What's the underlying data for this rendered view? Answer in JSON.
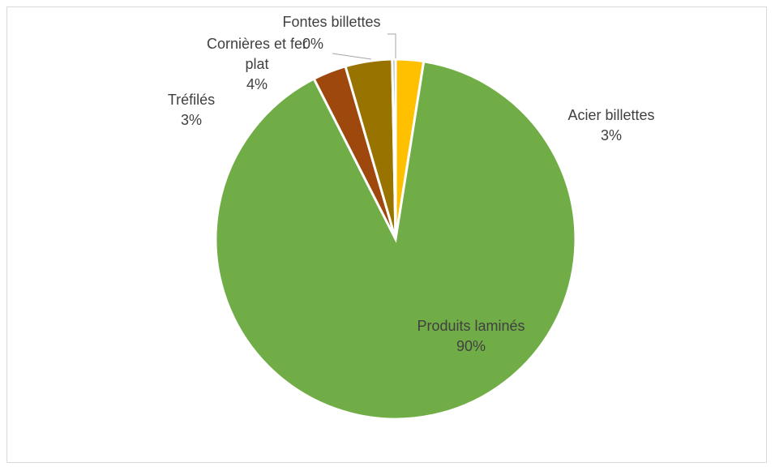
{
  "chart_data": {
    "type": "pie",
    "title": "",
    "legend": "none",
    "slices": [
      {
        "name": "Acier billettes",
        "label_lines": [
          "Acier billettes"
        ],
        "percent_label": "3%",
        "value": 2.5,
        "color": "#ffc000"
      },
      {
        "name": "Produits laminés",
        "label_lines": [
          "Produits laminés"
        ],
        "percent_label": "90%",
        "value": 90.0,
        "color": "#70ad47"
      },
      {
        "name": "Tréfilés",
        "label_lines": [
          "Tréfilés"
        ],
        "percent_label": "3%",
        "value": 3.0,
        "color": "#9e480e"
      },
      {
        "name": "Cornières et fer plat",
        "label_lines": [
          "Cornières et fer",
          "plat"
        ],
        "percent_label": "4%",
        "value": 4.2,
        "color": "#997300"
      },
      {
        "name": "Fontes billettes",
        "label_lines": [
          "Fontes billettes"
        ],
        "percent_label": "0%",
        "value": 0.3,
        "color": "#a5a5a5"
      }
    ]
  }
}
